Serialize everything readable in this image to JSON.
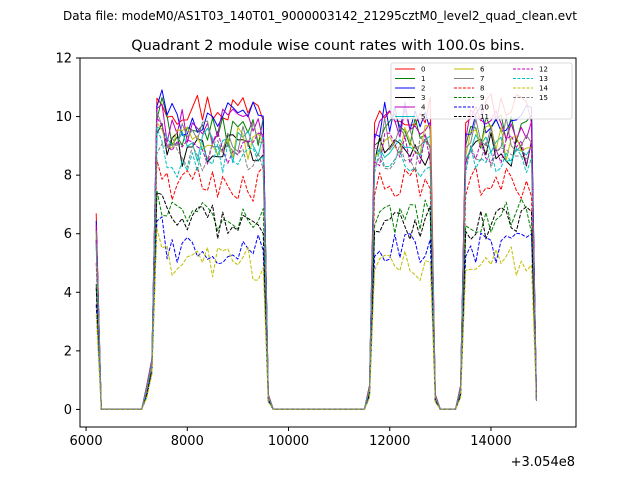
{
  "chart_data": {
    "type": "line",
    "suptitle": "Data file: modeM0/AS1T03_140T01_9000003142_21295cztM0_level2_quad_clean.evt",
    "title": "Quadrant 2 module wise count rates with 100.0s bins.",
    "xlabel": "",
    "ylabel": "",
    "x_offset_label": "+3.054e8",
    "xlim": [
      5880,
      15680
    ],
    "ylim": [
      -0.6,
      12.0
    ],
    "x_ticks": [
      6000,
      8000,
      10000,
      12000,
      14000
    ],
    "x_tick_labels": [
      "6000",
      "8000",
      "10000",
      "12000",
      "14000"
    ],
    "y_ticks": [
      0,
      2,
      4,
      6,
      8,
      10,
      12
    ],
    "y_tick_labels": [
      "0",
      "2",
      "4",
      "6",
      "8",
      "10",
      "12"
    ],
    "legend_location": "top-right",
    "segments": [
      {
        "x_start": 6200,
        "x_end": 6300,
        "step": 100
      },
      {
        "x_start": 7200,
        "x_end": 9600,
        "step": 100
      },
      {
        "x_start": 11600,
        "x_end": 12900,
        "step": 100
      },
      {
        "x_start": 13400,
        "x_end": 14900,
        "step": 100
      }
    ],
    "series": [
      {
        "name": "0",
        "color": "#ff0000",
        "style": "solid",
        "level": 10.3
      },
      {
        "name": "1",
        "color": "#008000",
        "style": "solid",
        "level": 9.5
      },
      {
        "name": "2",
        "color": "#0000ff",
        "style": "solid",
        "level": 9.9
      },
      {
        "name": "3",
        "color": "#000000",
        "style": "solid",
        "level": 8.9
      },
      {
        "name": "4",
        "color": "#bf00bf",
        "style": "solid",
        "level": 9.7
      },
      {
        "name": "5",
        "color": "#00bfbf",
        "style": "solid",
        "level": 9.0
      },
      {
        "name": "6",
        "color": "#bfbf00",
        "style": "solid",
        "level": 9.1
      },
      {
        "name": "7",
        "color": "#808080",
        "style": "solid",
        "level": 9.4
      },
      {
        "name": "8",
        "color": "#ff0000",
        "style": "dashed",
        "level": 7.7
      },
      {
        "name": "9",
        "color": "#008000",
        "style": "dashed",
        "level": 6.6
      },
      {
        "name": "10",
        "color": "#0000ff",
        "style": "dashed",
        "level": 5.5
      },
      {
        "name": "11",
        "color": "#000000",
        "style": "dashed",
        "level": 6.4
      },
      {
        "name": "12",
        "color": "#bf00bf",
        "style": "dashed",
        "level": 8.9
      },
      {
        "name": "13",
        "color": "#00bfbf",
        "style": "dashed",
        "level": 8.5
      },
      {
        "name": "14",
        "color": "#bfbf00",
        "style": "dashed",
        "level": 5.0
      },
      {
        "name": "15",
        "color": "#808080",
        "style": "dashed",
        "level": 8.7
      }
    ]
  }
}
